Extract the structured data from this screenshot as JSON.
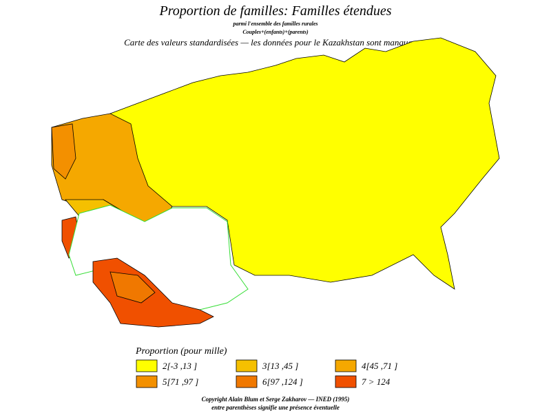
{
  "header": {
    "title": "Proportion de familles: Familles étendues",
    "subtitle": "parmi l'ensemble des familles rurales",
    "formula": "Couples+(enfants)+(parents)",
    "note": "Carte des valeurs standardisées — les données pour le Kazakhstan sont manquantes"
  },
  "legend": {
    "title": "Proportion (pour mille)",
    "items": [
      {
        "label": "2[-3 ,13 ]",
        "color": "#ffff00"
      },
      {
        "label": "3[13 ,45 ]",
        "color": "#f5c000"
      },
      {
        "label": "4[45 ,71 ]",
        "color": "#f5a800"
      },
      {
        "label": "5[71 ,97 ]",
        "color": "#f39000"
      },
      {
        "label": "6[97 ,124 ]",
        "color": "#f07800"
      },
      {
        "label": "7 > 124",
        "color": "#f05000"
      }
    ]
  },
  "footer": {
    "copyright": "Copyright Alain Blum et Serge Zakharov — INED (1995)",
    "remark": "entre parenthèses signifie une présence éventuelle"
  }
}
